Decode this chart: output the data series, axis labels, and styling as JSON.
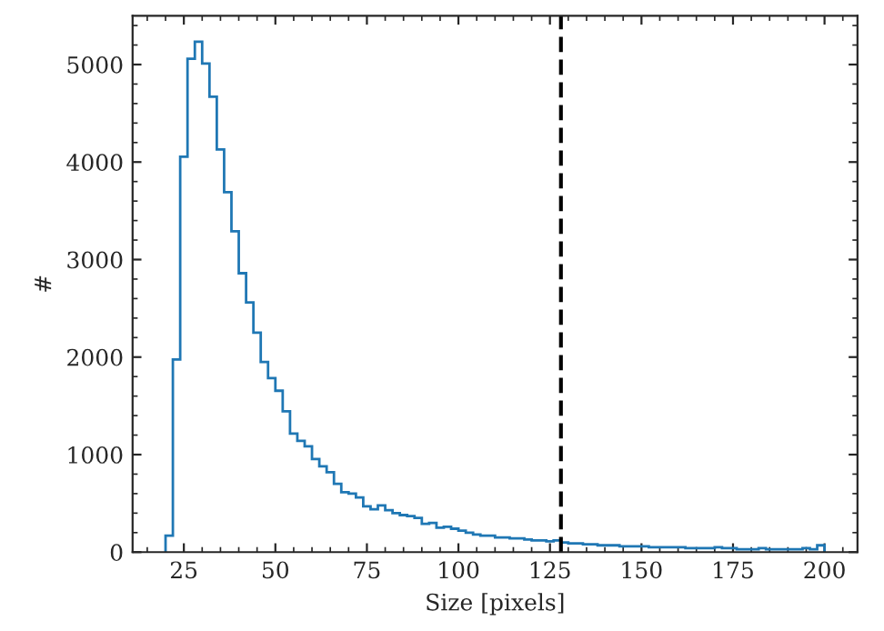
{
  "chart_data": {
    "type": "histogram",
    "xlabel": "Size [pixels]",
    "ylabel": "#",
    "bins": [
      20,
      22,
      24,
      26,
      28,
      30,
      32,
      34,
      36,
      38,
      40,
      42,
      44,
      46,
      48,
      50,
      52,
      54,
      56,
      58,
      60,
      62,
      64,
      66,
      68,
      70,
      72,
      74,
      76,
      78,
      80,
      82,
      84,
      86,
      88,
      90,
      92,
      94,
      96,
      98,
      100,
      102,
      104,
      106,
      108,
      110,
      112,
      114,
      116,
      118,
      120,
      122,
      124,
      126,
      128,
      130,
      132,
      134,
      136,
      138,
      140,
      142,
      144,
      146,
      148,
      150,
      152,
      154,
      156,
      158,
      160,
      162,
      164,
      166,
      168,
      170,
      172,
      174,
      176,
      178,
      180,
      182,
      184,
      186,
      188,
      190,
      192,
      194,
      196,
      198,
      200
    ],
    "values": [
      170,
      1975,
      4055,
      5060,
      5235,
      5010,
      4670,
      4130,
      3690,
      3290,
      2860,
      2560,
      2250,
      1950,
      1785,
      1655,
      1445,
      1215,
      1140,
      1085,
      955,
      880,
      820,
      700,
      615,
      600,
      560,
      470,
      440,
      480,
      430,
      400,
      380,
      370,
      350,
      290,
      300,
      250,
      260,
      240,
      220,
      200,
      180,
      170,
      170,
      150,
      150,
      140,
      140,
      130,
      120,
      120,
      110,
      120,
      100,
      90,
      90,
      80,
      80,
      70,
      70,
      70,
      60,
      60,
      60,
      60,
      50,
      50,
      50,
      50,
      50,
      40,
      40,
      40,
      40,
      50,
      40,
      40,
      30,
      30,
      30,
      40,
      30,
      30,
      30,
      30,
      30,
      40,
      30,
      70
    ],
    "color": "#1f77b4",
    "xlim": [
      11,
      209
    ],
    "xticks": [
      25,
      50,
      75,
      100,
      125,
      150,
      175,
      200
    ],
    "ylim": [
      0,
      5500
    ],
    "yticks": [
      0,
      1000,
      2000,
      3000,
      4000,
      5000
    ],
    "ref_lines": [
      {
        "axis": "x",
        "value": 128,
        "color": "#000000",
        "line_style": "dashed"
      }
    ],
    "grid": false
  }
}
